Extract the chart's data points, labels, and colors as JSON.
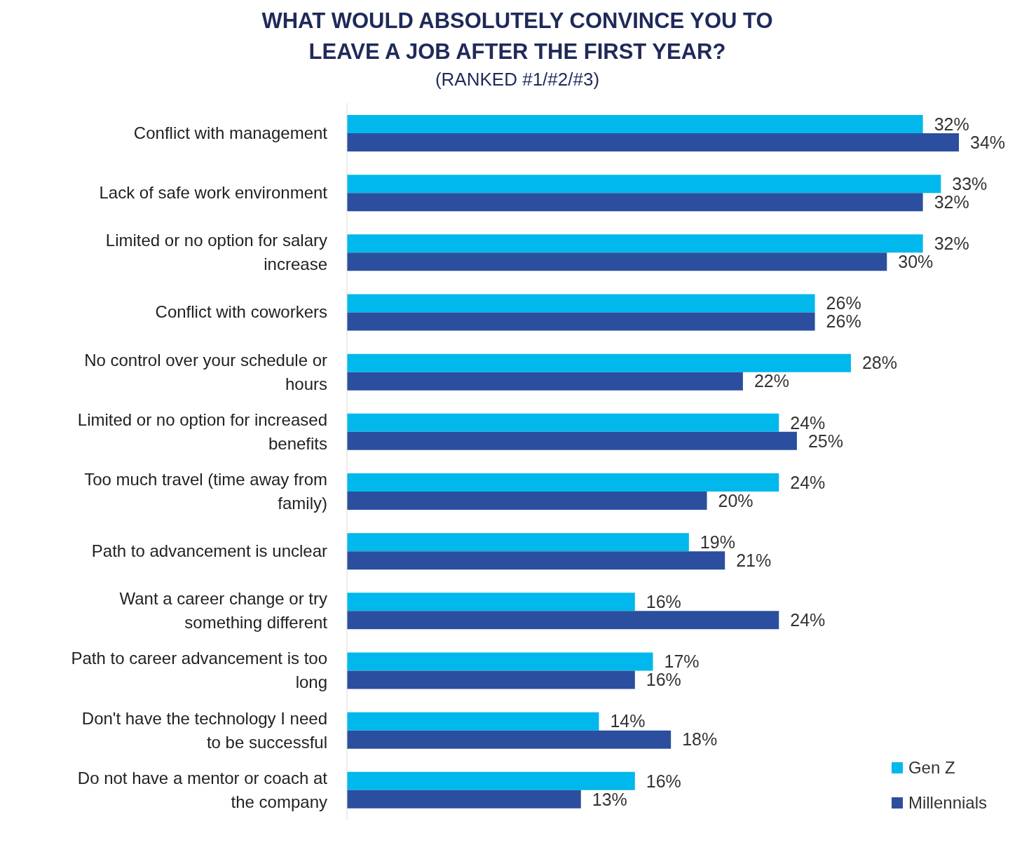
{
  "chart_data": {
    "type": "bar",
    "orientation": "horizontal",
    "title": "WHAT WOULD ABSOLUTELY CONVINCE YOU TO LEAVE A JOB AFTER THE FIRST YEAR?",
    "subtitle": "(RANKED #1/#2/#3)",
    "categories": [
      "Conflict with management",
      "Lack of safe work environment",
      "Limited or no option for salary increase",
      "Conflict with coworkers",
      "No control over your schedule or hours",
      "Limited or no option for increased benefits",
      "Too much travel (time away from family)",
      "Path to advancement is unclear",
      "Want a career change or try something different",
      "Path to career advancement is too long",
      "Don't have the technology I need to be successful",
      "Do not have a mentor or coach at the company"
    ],
    "series": [
      {
        "name": "Gen Z",
        "color": "#00b8ec",
        "values": [
          32,
          33,
          32,
          26,
          28,
          24,
          24,
          19,
          16,
          17,
          14,
          16
        ],
        "value_labels": [
          "32%",
          "33%",
          "32%",
          "26%",
          "28%",
          "24%",
          "24%",
          "19%",
          "16%",
          "17%",
          "14%",
          "16%"
        ]
      },
      {
        "name": "Millennials",
        "color": "#2b4f9e",
        "values": [
          34,
          32,
          30,
          26,
          22,
          25,
          20,
          21,
          24,
          16,
          18,
          13
        ],
        "value_labels": [
          "34%",
          "32%",
          "30%",
          "26%",
          "22%",
          "25%",
          "20%",
          "21%",
          "24%",
          "16%",
          "18%",
          "13%"
        ]
      }
    ],
    "legend": "bottom right"
  }
}
